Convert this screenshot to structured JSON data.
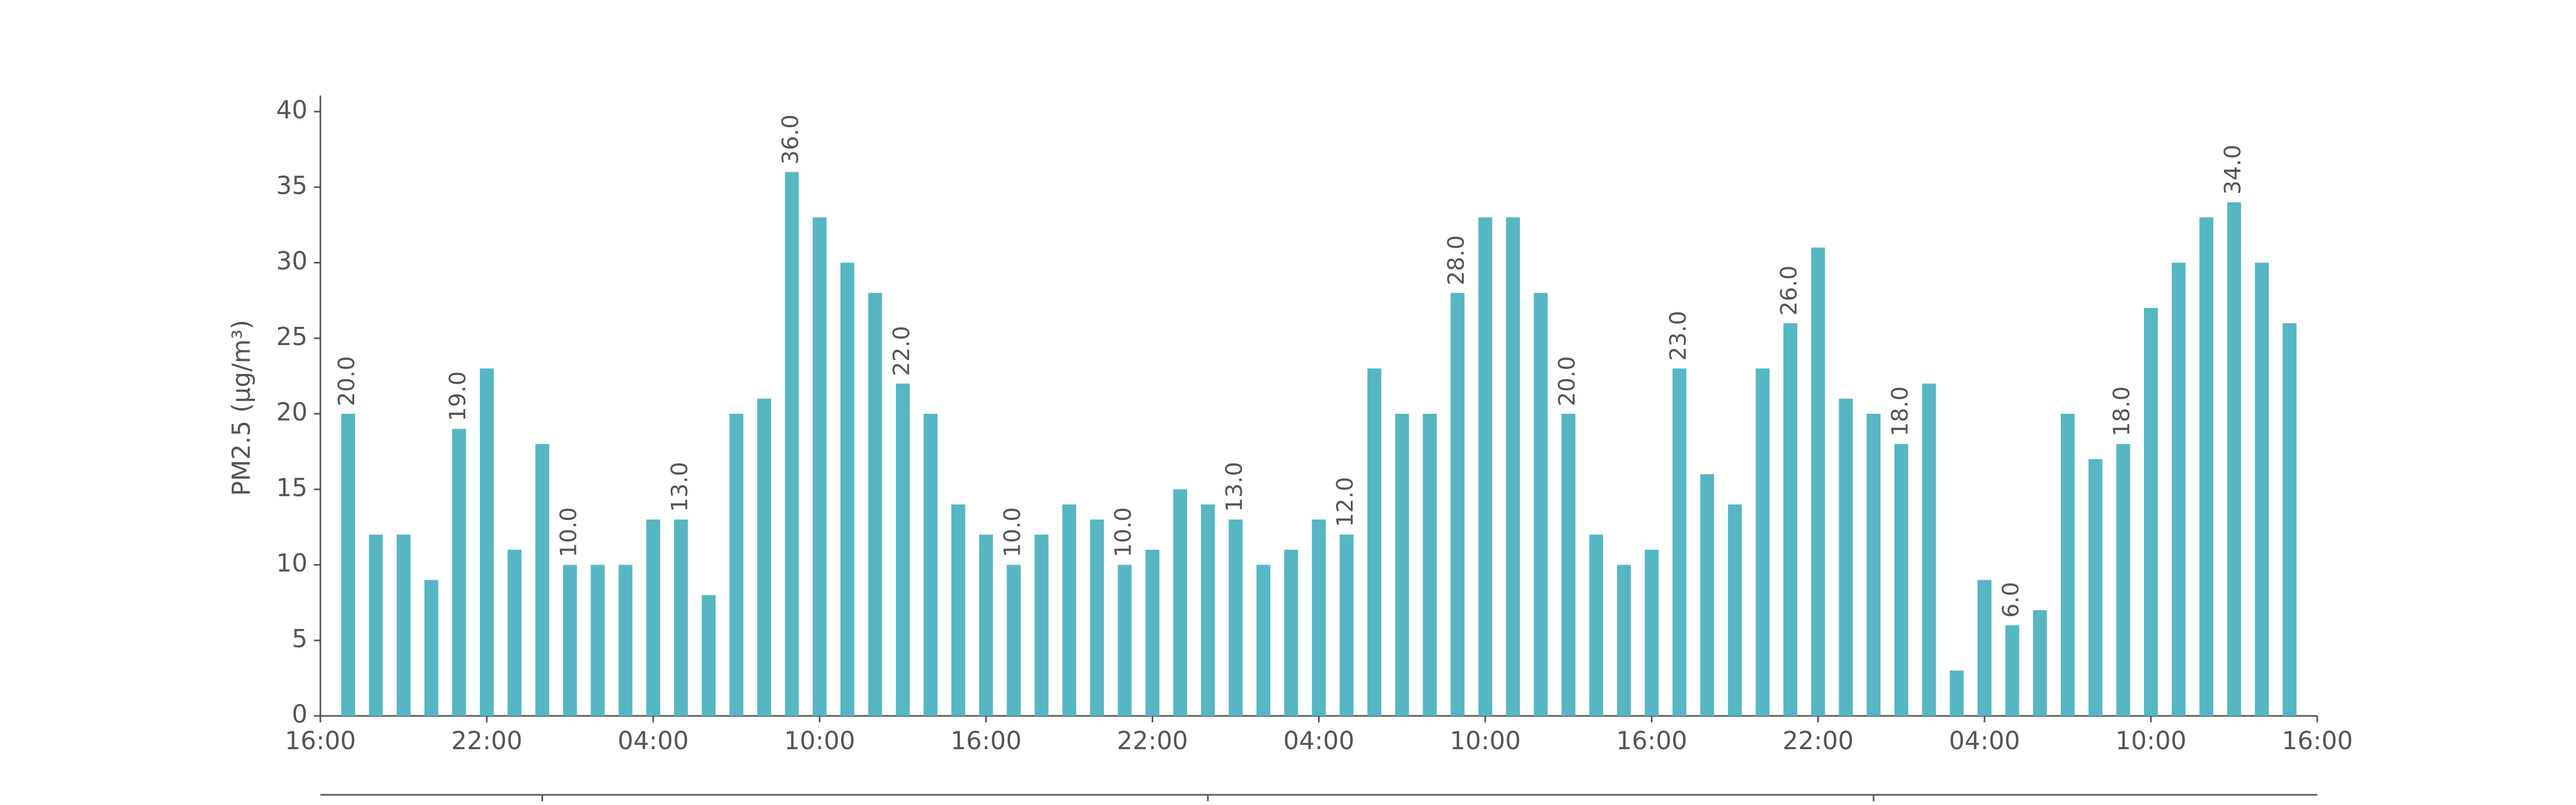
{
  "chart_data": {
    "type": "bar",
    "y_label": "PM2.5 (μg/m³)",
    "x": [
      1,
      2,
      3,
      4,
      5,
      6,
      7,
      8,
      9,
      10,
      11,
      12,
      13,
      14,
      15,
      16,
      17,
      18,
      19,
      20,
      21,
      22,
      23,
      24,
      25,
      26,
      27,
      28,
      29,
      30,
      31,
      32,
      33,
      34,
      35,
      36,
      37,
      38,
      39,
      40,
      41,
      42,
      43,
      44,
      45,
      46,
      47,
      48,
      49,
      50,
      51,
      52,
      53,
      54,
      55,
      56,
      57,
      58,
      59,
      60,
      61,
      62,
      63,
      64,
      65,
      66,
      67,
      68,
      69,
      70,
      71
    ],
    "values": [
      20,
      12,
      12,
      9,
      19,
      23,
      11,
      18,
      10,
      10,
      10,
      13,
      13,
      8,
      20,
      21,
      36,
      33,
      30,
      28,
      22,
      20,
      14,
      12,
      10,
      12,
      14,
      13,
      10,
      11,
      15,
      14,
      13,
      10,
      11,
      13,
      12,
      23,
      20,
      20,
      28,
      33,
      33,
      28,
      20,
      12,
      10,
      11,
      23,
      16,
      14,
      23,
      26,
      31,
      21,
      20,
      18,
      22,
      3,
      9,
      6,
      7,
      20,
      17,
      18,
      27,
      30,
      33,
      34,
      30,
      26
    ],
    "value_labels": [
      "20.0",
      null,
      null,
      null,
      "19.0",
      null,
      null,
      null,
      "10.0",
      null,
      null,
      null,
      "13.0",
      null,
      null,
      null,
      "36.0",
      null,
      null,
      null,
      "22.0",
      null,
      null,
      null,
      "10.0",
      null,
      null,
      null,
      "10.0",
      null,
      null,
      null,
      "13.0",
      null,
      null,
      null,
      "12.0",
      null,
      null,
      null,
      "28.0",
      null,
      null,
      null,
      "20.0",
      null,
      null,
      null,
      "23.0",
      null,
      null,
      null,
      "26.0",
      null,
      null,
      null,
      "18.0",
      null,
      null,
      null,
      "6.0",
      null,
      null,
      null,
      "18.0",
      null,
      null,
      null,
      "34.0",
      null,
      null
    ],
    "color": "#56b6c4",
    "xlim": [
      0,
      72
    ],
    "xticks": [
      {
        "value": 0,
        "label": "16:00"
      },
      {
        "value": 6,
        "label": "22:00"
      },
      {
        "value": 12,
        "label": "04:00"
      },
      {
        "value": 18,
        "label": "10:00"
      },
      {
        "value": 24,
        "label": "16:00"
      },
      {
        "value": 30,
        "label": "22:00"
      },
      {
        "value": 36,
        "label": "04:00"
      },
      {
        "value": 42,
        "label": "10:00"
      },
      {
        "value": 48,
        "label": "16:00"
      },
      {
        "value": 54,
        "label": "22:00"
      },
      {
        "value": 60,
        "label": "04:00"
      },
      {
        "value": 66,
        "label": "10:00"
      },
      {
        "value": 72,
        "label": "16:00"
      }
    ],
    "secondary_xticks": [
      8,
      32,
      56
    ],
    "ylim": [
      0,
      40
    ],
    "yticks": [
      0,
      5,
      10,
      15,
      20,
      25,
      30,
      35,
      40
    ],
    "grid": false
  }
}
